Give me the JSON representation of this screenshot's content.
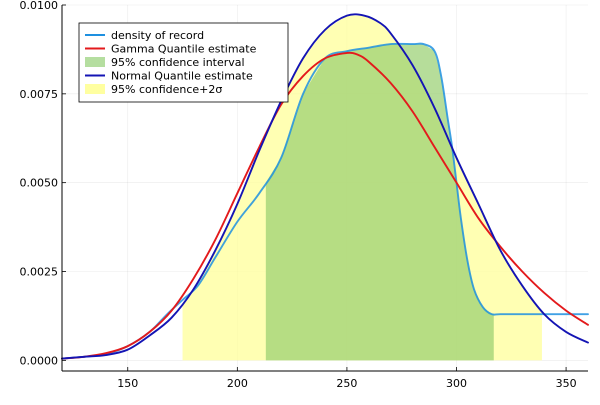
{
  "chart_data": {
    "type": "line",
    "title": "",
    "xlabel": "",
    "ylabel": "",
    "xlim": [
      120,
      360
    ],
    "ylim": [
      -0.0003,
      0.01
    ],
    "xticks": [
      150,
      200,
      250,
      300,
      350
    ],
    "xtick_labels": [
      "150",
      "200",
      "250",
      "300",
      "350"
    ],
    "yticks": [
      0.0,
      0.0025,
      0.005,
      0.0075,
      0.01
    ],
    "ytick_labels": [
      "0.0000",
      "0.0025",
      "0.0050",
      "0.0075",
      "0.0100"
    ],
    "grid": true,
    "legend_position": "top-left",
    "bands": [
      {
        "name": "95% confidence+2σ",
        "color": "#ffff99",
        "opacity": 0.75,
        "x_start": 175,
        "x_end": 339,
        "follows": "Normal Quantile estimate"
      },
      {
        "name": "95% confidence interval",
        "color": "#97cf6f",
        "opacity": 0.7,
        "x_start": 213,
        "x_end": 317,
        "follows": "density of record"
      }
    ],
    "series": [
      {
        "name": "density of record",
        "color": "#1e90e0",
        "x": [
          120,
          130,
          140,
          150,
          160,
          168,
          175,
          182,
          190,
          200,
          210,
          220,
          230,
          240,
          250,
          260,
          270,
          280,
          285,
          290,
          293,
          296,
          298,
          300,
          302,
          305,
          308,
          312,
          316,
          320,
          330,
          340,
          350,
          360
        ],
        "y": [
          5e-05,
          0.0001,
          0.00018,
          0.0004,
          0.0008,
          0.0013,
          0.0017,
          0.0021,
          0.0029,
          0.0039,
          0.0047,
          0.0057,
          0.0075,
          0.0085,
          0.0087,
          0.0088,
          0.0089,
          0.0089,
          0.0089,
          0.0087,
          0.008,
          0.0068,
          0.006,
          0.005,
          0.004,
          0.0028,
          0.002,
          0.0015,
          0.0013,
          0.0013,
          0.0013,
          0.0013,
          0.0013,
          0.0013
        ]
      },
      {
        "name": "Gamma Quantile estimate",
        "color": "#e31a1c",
        "x": [
          120,
          130,
          140,
          150,
          160,
          170,
          180,
          190,
          200,
          210,
          220,
          230,
          240,
          250,
          255,
          260,
          270,
          280,
          290,
          300,
          310,
          320,
          330,
          340,
          350,
          360
        ],
        "y": [
          5e-05,
          0.0001,
          0.0002,
          0.0004,
          0.0008,
          0.0014,
          0.0023,
          0.0034,
          0.0047,
          0.006,
          0.0072,
          0.008,
          0.0085,
          0.00865,
          0.0086,
          0.0084,
          0.0078,
          0.007,
          0.006,
          0.005,
          0.004,
          0.0032,
          0.0025,
          0.0019,
          0.0014,
          0.001
        ]
      },
      {
        "name": "Normal Quantile estimate",
        "color": "#1414b4",
        "x": [
          120,
          130,
          140,
          150,
          160,
          170,
          180,
          190,
          200,
          210,
          220,
          230,
          240,
          250,
          258,
          265,
          270,
          280,
          290,
          300,
          310,
          320,
          330,
          340,
          350,
          360
        ],
        "y": [
          5e-05,
          0.0001,
          0.00015,
          0.0003,
          0.0007,
          0.0012,
          0.002,
          0.0031,
          0.0044,
          0.0059,
          0.0073,
          0.0085,
          0.0093,
          0.0097,
          0.0097,
          0.0095,
          0.0092,
          0.0083,
          0.0071,
          0.0057,
          0.0044,
          0.0031,
          0.0021,
          0.0013,
          0.0008,
          0.0005
        ]
      }
    ],
    "legend": [
      {
        "label": "density of record",
        "kind": "line",
        "color": "#1e90e0"
      },
      {
        "label": "Gamma Quantile estimate",
        "kind": "line",
        "color": "#e31a1c"
      },
      {
        "label": "95% confidence interval",
        "kind": "patch",
        "color": "#b5dea0"
      },
      {
        "label": "Normal Quantile estimate",
        "kind": "line",
        "color": "#1414b4"
      },
      {
        "label": "95% confidence+2σ",
        "kind": "patch",
        "color": "#ffffa0"
      }
    ]
  }
}
